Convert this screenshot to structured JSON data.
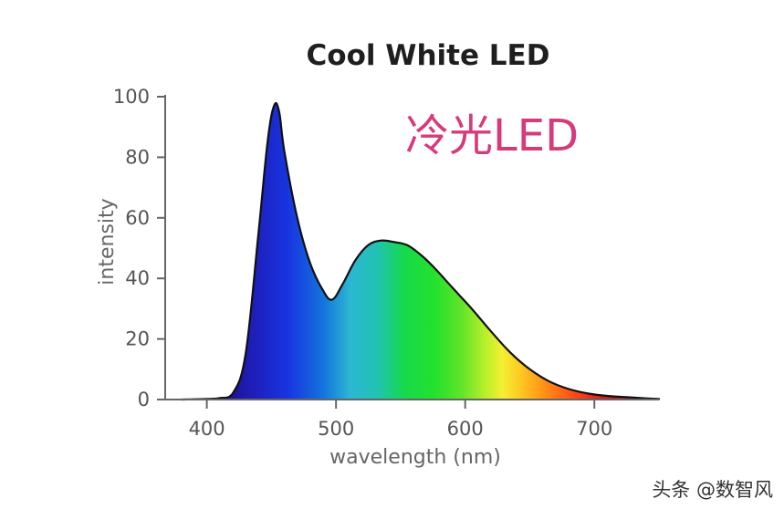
{
  "chart_data": {
    "type": "area",
    "title": "Cool White LED",
    "overlay_label": "冷光LED",
    "xlabel": "wavelength (nm)",
    "ylabel": "intensity",
    "xlim": [
      360,
      750
    ],
    "ylim": [
      0,
      100
    ],
    "xticks": [
      400,
      500,
      600,
      700
    ],
    "yticks": [
      0,
      20,
      40,
      60,
      80,
      100
    ],
    "grid": false,
    "fill": "visible-spectrum gradient",
    "curve": {
      "x": [
        380,
        400,
        410,
        420,
        430,
        440,
        447,
        452,
        456,
        460,
        470,
        480,
        490,
        497,
        505,
        515,
        525,
        535,
        545,
        555,
        565,
        575,
        590,
        605,
        620,
        635,
        650,
        665,
        680,
        695,
        710,
        725,
        740,
        750
      ],
      "y": [
        0,
        0.2,
        0.5,
        2,
        15,
        55,
        85,
        97,
        95,
        82,
        60,
        45,
        36,
        33,
        38,
        46,
        51,
        52.5,
        52,
        51,
        48,
        44,
        37,
        30,
        22.5,
        15.5,
        10,
        6,
        3.5,
        2,
        1.2,
        0.8,
        0.4,
        0.2
      ]
    }
  },
  "watermark": "头条 @数智风",
  "colors": {
    "title": "#1f1f1f",
    "overlay_label": "#d63a7a",
    "axis_text": "#666666",
    "axis_line": "#666666",
    "curve_stroke": "#111111"
  }
}
